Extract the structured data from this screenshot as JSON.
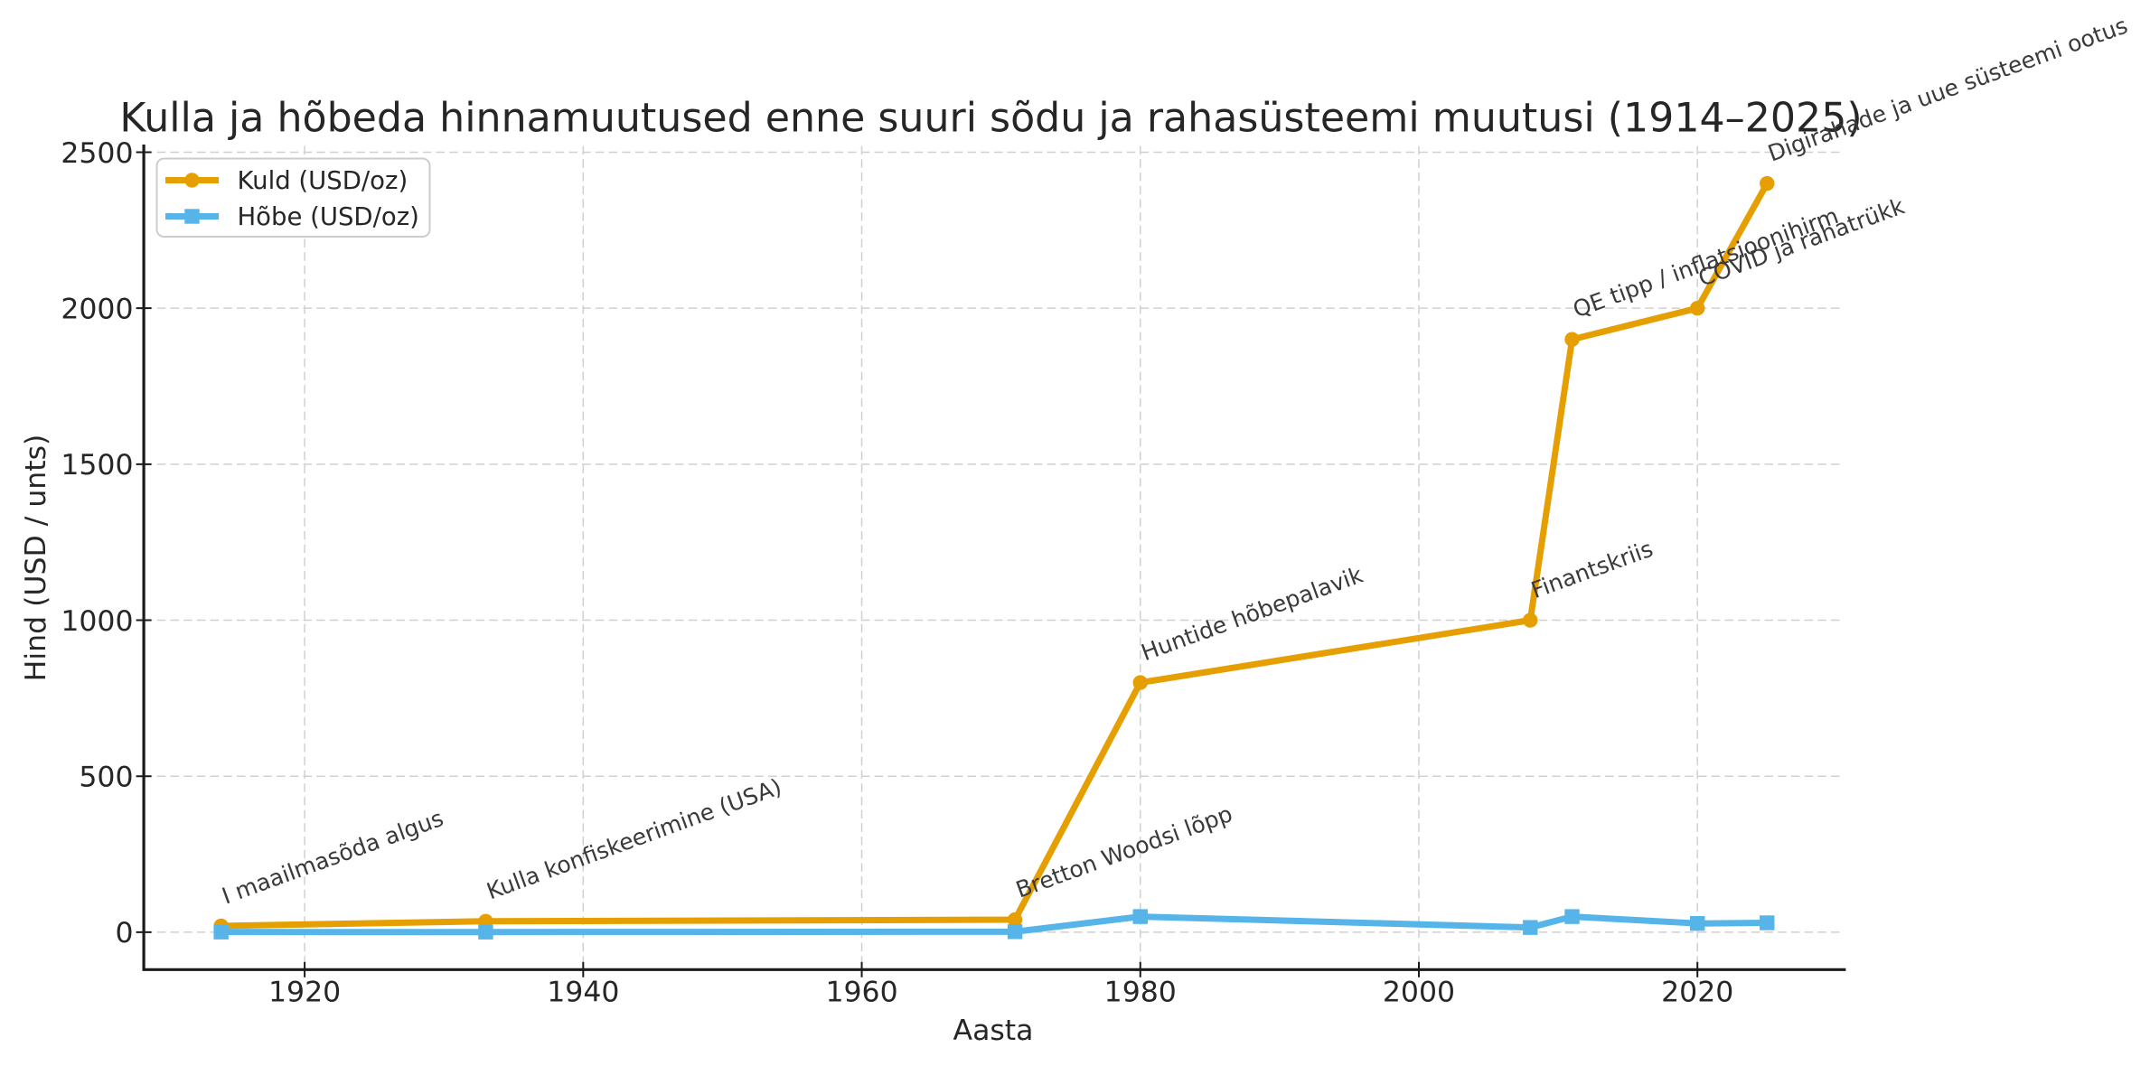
{
  "chart_data": {
    "type": "line",
    "title": "Kulla ja hõbeda hinnamuutused enne suuri sõdu ja rahasüsteemi muutusi (1914–2025)",
    "xlabel": "Aasta",
    "ylabel": "Hind (USD / unts)",
    "x": [
      1914,
      1933,
      1971,
      1980,
      2008,
      2011,
      2020,
      2025
    ],
    "series": [
      {
        "name": "Kuld (USD/oz)",
        "color": "#E69F00",
        "marker": "circle",
        "values": [
          20,
          35,
          40,
          800,
          1000,
          1900,
          2000,
          2400
        ]
      },
      {
        "name": "Hõbe (USD/oz)",
        "color": "#56B4E9",
        "marker": "square",
        "values": [
          0.55,
          0.35,
          1.55,
          50,
          15,
          50,
          28,
          30
        ]
      }
    ],
    "annotations": [
      {
        "x": 1914,
        "y": 20,
        "label": "I maailmasõda algus"
      },
      {
        "x": 1933,
        "y": 35,
        "label": "Kulla konfiskeerimine (USA)"
      },
      {
        "x": 1971,
        "y": 40,
        "label": "Bretton Woodsi lõpp"
      },
      {
        "x": 1980,
        "y": 800,
        "label": "Huntide hõbepalavik"
      },
      {
        "x": 2008,
        "y": 1000,
        "label": "Finantskriis"
      },
      {
        "x": 2011,
        "y": 1900,
        "label": "QE tipp / inflatsioonihirm"
      },
      {
        "x": 2020,
        "y": 2000,
        "label": "COVID ja rahatrükk"
      },
      {
        "x": 2025,
        "y": 2400,
        "label": "Digirahade ja uue süsteemi ootus"
      }
    ],
    "annotation_rotation_deg": 20,
    "xticks": [
      1920,
      1940,
      1960,
      1980,
      2000,
      2020
    ],
    "yticks": [
      0,
      500,
      1000,
      1500,
      2000,
      2500
    ],
    "xlim": [
      1908.45,
      2030.55
    ],
    "ylim": [
      -120,
      2520
    ],
    "grid": true,
    "legend_position": "upper left",
    "colors": {
      "gold": "#E69F00",
      "silver": "#56B4E9",
      "grid": "#d0d0d0",
      "axis": "#1b1b1b",
      "tick_label": "#262626",
      "title": "#262626",
      "annotation": "#3a3a3a",
      "legend_border": "#cccccc",
      "legend_bg": "#ffffff"
    }
  }
}
